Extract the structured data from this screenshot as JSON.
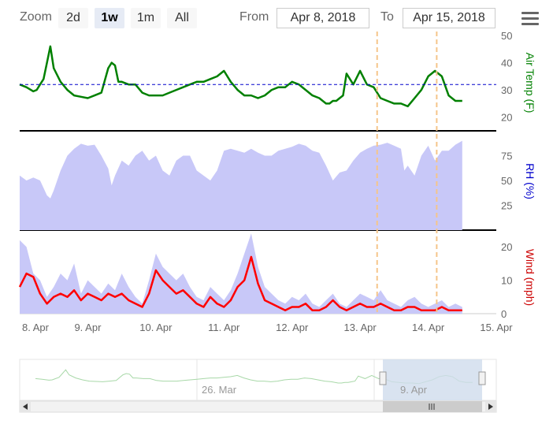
{
  "range_selector": {
    "zoom_label": "Zoom",
    "buttons": [
      {
        "label": "2d",
        "active": false
      },
      {
        "label": "1w",
        "active": true
      },
      {
        "label": "1m",
        "active": false
      },
      {
        "label": "All",
        "active": false
      }
    ],
    "from_label": "From",
    "from_value": "Apr 8, 2018",
    "to_label": "To",
    "to_value": "Apr 15, 2018"
  },
  "menu": {
    "icon": "hamburger-menu-icon"
  },
  "chart_data": {
    "type": "line",
    "x_axis": {
      "type": "datetime",
      "ticks": [
        "8. Apr",
        "9. Apr",
        "10. Apr",
        "11. Apr",
        "12. Apr",
        "13. Apr",
        "14. Apr",
        "15. Apr"
      ],
      "range": [
        "2018-04-08",
        "2018-04-15"
      ]
    },
    "plot_lines": [
      "2018-04-13T06:00",
      "2018-04-14T03:00"
    ],
    "panels": [
      {
        "ylabel": "Air Temp (F)",
        "label_color": "#008000",
        "ylim": [
          15,
          50
        ],
        "ticks": [
          20,
          30,
          40,
          50
        ],
        "reference_line": 32,
        "series": [
          {
            "type": "line",
            "color": "#008000",
            "x": [
              0,
              0.1,
              0.2,
              0.25,
              0.3,
              0.35,
              0.4,
              0.45,
              0.5,
              0.6,
              0.7,
              0.8,
              0.9,
              1.0,
              1.1,
              1.2,
              1.3,
              1.35,
              1.4,
              1.45,
              1.5,
              1.6,
              1.7,
              1.8,
              1.9,
              2.0,
              2.1,
              2.2,
              2.3,
              2.4,
              2.5,
              2.6,
              2.7,
              2.8,
              2.9,
              3.0,
              3.1,
              3.2,
              3.3,
              3.4,
              3.5,
              3.6,
              3.7,
              3.8,
              3.9,
              4.0,
              4.1,
              4.2,
              4.3,
              4.4,
              4.5,
              4.55,
              4.6,
              4.65,
              4.7,
              4.75,
              4.8,
              4.9,
              5.0,
              5.1,
              5.2,
              5.3,
              5.4,
              5.5,
              5.6,
              5.7,
              5.8,
              5.9,
              6.0,
              6.1,
              6.2,
              6.3,
              6.4,
              6.5
            ],
            "y": [
              32,
              31,
              29.5,
              30,
              32,
              34,
              40,
              46,
              38,
              33,
              30,
              28,
              27.5,
              27,
              28,
              29,
              38,
              40,
              39,
              33,
              33,
              32,
              32,
              29,
              28,
              28,
              28,
              29,
              30,
              31,
              32,
              33,
              33,
              34,
              35,
              37,
              33,
              30,
              28,
              28,
              27,
              28,
              30,
              31,
              31,
              33,
              32,
              30,
              28,
              27,
              25,
              25,
              26,
              26,
              27,
              28,
              36,
              32,
              37,
              32,
              31,
              27,
              26,
              25,
              25,
              24,
              27,
              30,
              35,
              37,
              35,
              28,
              26,
              26
            ]
          },
          {
            "type": "dashed",
            "name": "",
            "color": "#0000cc"
          }
        ]
      },
      {
        "ylabel": "RH (%)",
        "label_color": "#0000cc",
        "ylim": [
          0,
          100
        ],
        "ticks": [
          25,
          50,
          75
        ],
        "series": [
          {
            "type": "area",
            "color": "#c8c8f8",
            "x": [
              0,
              0.1,
              0.2,
              0.3,
              0.4,
              0.45,
              0.5,
              0.6,
              0.7,
              0.8,
              0.9,
              1.0,
              1.1,
              1.2,
              1.3,
              1.35,
              1.4,
              1.5,
              1.6,
              1.7,
              1.8,
              1.9,
              2.0,
              2.1,
              2.2,
              2.3,
              2.4,
              2.5,
              2.6,
              2.7,
              2.8,
              2.9,
              3.0,
              3.1,
              3.2,
              3.3,
              3.4,
              3.5,
              3.6,
              3.7,
              3.8,
              3.9,
              4.0,
              4.1,
              4.2,
              4.3,
              4.4,
              4.5,
              4.6,
              4.7,
              4.8,
              4.9,
              5.0,
              5.1,
              5.2,
              5.3,
              5.4,
              5.5,
              5.6,
              5.65,
              5.7,
              5.8,
              5.9,
              6.0,
              6.1,
              6.2,
              6.3,
              6.4,
              6.5
            ],
            "y": [
              55,
              50,
              53,
              50,
              35,
              32,
              40,
              60,
              75,
              82,
              87,
              85,
              86,
              75,
              62,
              45,
              55,
              70,
              65,
              75,
              80,
              70,
              75,
              60,
              55,
              70,
              75,
              75,
              60,
              55,
              50,
              60,
              80,
              82,
              80,
              78,
              82,
              78,
              75,
              75,
              80,
              82,
              84,
              87,
              85,
              80,
              78,
              65,
              50,
              58,
              60,
              70,
              78,
              82,
              85,
              86,
              88,
              85,
              82,
              60,
              65,
              55,
              75,
              85,
              70,
              80,
              80,
              86,
              90
            ]
          }
        ]
      },
      {
        "ylabel": "Wind (mph)",
        "label_color": "#cc0000",
        "ylim": [
          0,
          25
        ],
        "ticks": [
          0,
          10,
          20
        ],
        "series": [
          {
            "type": "area",
            "color": "#c8c8f8",
            "x": [
              0,
              0.1,
              0.2,
              0.3,
              0.4,
              0.5,
              0.6,
              0.7,
              0.8,
              0.9,
              1.0,
              1.1,
              1.2,
              1.3,
              1.4,
              1.5,
              1.6,
              1.7,
              1.8,
              1.9,
              2.0,
              2.1,
              2.2,
              2.3,
              2.4,
              2.5,
              2.6,
              2.7,
              2.8,
              2.9,
              3.0,
              3.1,
              3.2,
              3.3,
              3.4,
              3.5,
              3.6,
              3.7,
              3.8,
              3.9,
              4.0,
              4.1,
              4.2,
              4.3,
              4.4,
              4.5,
              4.6,
              4.7,
              4.8,
              4.9,
              5.0,
              5.1,
              5.2,
              5.3,
              5.4,
              5.5,
              5.6,
              5.7,
              5.8,
              5.9,
              6.0,
              6.1,
              6.2,
              6.3,
              6.4,
              6.5
            ],
            "y": [
              22,
              20,
              12,
              10,
              5,
              8,
              12,
              10,
              15,
              6,
              10,
              8,
              6,
              9,
              7,
              12,
              8,
              5,
              3,
              10,
              18,
              14,
              12,
              10,
              12,
              8,
              5,
              4,
              8,
              6,
              4,
              7,
              12,
              18,
              24,
              14,
              8,
              6,
              4,
              3,
              5,
              4,
              6,
              3,
              2,
              4,
              6,
              3,
              2,
              4,
              6,
              5,
              4,
              7,
              4,
              3,
              2,
              4,
              5,
              3,
              2,
              3,
              4,
              2,
              3,
              2
            ]
          },
          {
            "type": "line",
            "color": "#ff0000",
            "x": [
              0,
              0.1,
              0.2,
              0.3,
              0.4,
              0.5,
              0.6,
              0.7,
              0.8,
              0.9,
              1.0,
              1.1,
              1.2,
              1.3,
              1.4,
              1.5,
              1.6,
              1.7,
              1.8,
              1.9,
              2.0,
              2.1,
              2.2,
              2.3,
              2.4,
              2.5,
              2.6,
              2.7,
              2.8,
              2.9,
              3.0,
              3.1,
              3.2,
              3.3,
              3.4,
              3.5,
              3.6,
              3.7,
              3.8,
              3.9,
              4.0,
              4.1,
              4.2,
              4.3,
              4.4,
              4.5,
              4.6,
              4.7,
              4.8,
              4.9,
              5.0,
              5.1,
              5.2,
              5.3,
              5.4,
              5.5,
              5.6,
              5.7,
              5.8,
              5.9,
              6.0,
              6.1,
              6.2,
              6.3,
              6.4,
              6.5
            ],
            "y": [
              8,
              12,
              11,
              6,
              3,
              5,
              6,
              5,
              7,
              4,
              6,
              5,
              4,
              6,
              5,
              6,
              4,
              3,
              2,
              6,
              13,
              10,
              8,
              6,
              7,
              5,
              3,
              2,
              5,
              3,
              2,
              4,
              8,
              10,
              17,
              9,
              4,
              3,
              2,
              1,
              2,
              2,
              3,
              1,
              1,
              2,
              4,
              2,
              1,
              2,
              3,
              2,
              2,
              3,
              2,
              1,
              1,
              2,
              2,
              1,
              1,
              1,
              2,
              1,
              1,
              1
            ]
          }
        ]
      }
    ],
    "navigator": {
      "tick_labels": [
        "26. Mar",
        "9. Apr"
      ],
      "selection": [
        "2018-04-08",
        "2018-04-15"
      ]
    }
  }
}
